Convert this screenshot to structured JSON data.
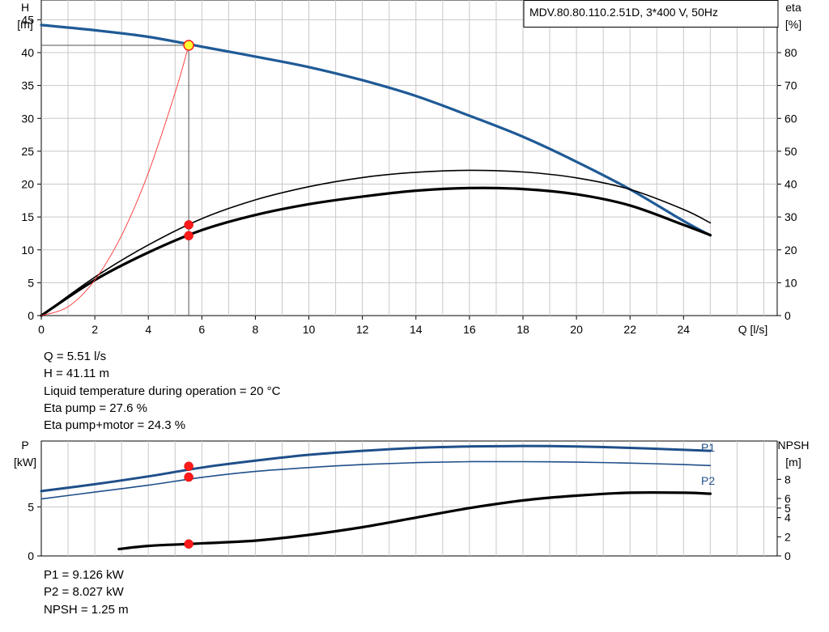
{
  "colors": {
    "grid": "#c8c8c8",
    "axis": "#000000",
    "head_curve": "#1f5a96",
    "p_curve": "#1f4f8a",
    "eff_curve": "#000000",
    "system_curve": "#ff3333",
    "marker": "#ff1a1a",
    "duty_marker_fill": "#ffff33"
  },
  "chart_data": [
    {
      "type": "line",
      "title": "MDV.80.80.110.2.51D, 3*400 V, 50Hz",
      "xlabel": "Q [l/s]",
      "ylabel_main": "H",
      "ylabel_unit": "[m]",
      "y2label_main": "eta",
      "y2label_unit": "[%]",
      "xlim": [
        0,
        27.5
      ],
      "ylim": [
        0,
        48
      ],
      "y2lim": [
        0,
        96
      ],
      "x_ticks": [
        0,
        2,
        4,
        6,
        8,
        10,
        12,
        14,
        16,
        18,
        20,
        22,
        24
      ],
      "y_ticks": [
        0,
        5,
        10,
        15,
        20,
        25,
        30,
        35,
        40,
        45
      ],
      "y2_ticks": [
        0,
        10,
        20,
        30,
        40,
        50,
        60,
        70,
        80
      ],
      "grid": true,
      "series": [
        {
          "name": "H",
          "axis": "left",
          "style": "head",
          "x": [
            0,
            2,
            4,
            6,
            8,
            10,
            12,
            14,
            16,
            18,
            20,
            22,
            24,
            25
          ],
          "y": [
            44.2,
            43.4,
            42.4,
            40.9,
            39.4,
            37.8,
            35.8,
            33.4,
            30.4,
            27.2,
            23.4,
            19.2,
            14.4,
            12.2
          ]
        },
        {
          "name": "Eta pump",
          "axis": "right",
          "style": "eff_thin",
          "x": [
            0,
            2,
            4,
            6,
            8,
            10,
            12,
            14,
            16,
            18,
            20,
            22,
            24,
            25
          ],
          "y": [
            0,
            11.7,
            21.5,
            29.5,
            35.2,
            39.2,
            42.0,
            43.6,
            44.2,
            43.7,
            41.9,
            38.4,
            32.3,
            28.2
          ]
        },
        {
          "name": "Eta pump+motor",
          "axis": "right",
          "style": "eff_thick",
          "x": [
            0,
            2,
            4,
            6,
            8,
            10,
            12,
            14,
            16,
            18,
            20,
            22,
            24,
            25
          ],
          "y": [
            0,
            10.8,
            19.2,
            26.0,
            30.6,
            33.9,
            36.2,
            38.0,
            38.8,
            38.5,
            36.9,
            33.5,
            27.6,
            24.5
          ]
        },
        {
          "name": "System curve",
          "axis": "left",
          "style": "system",
          "x": [
            0,
            1,
            2,
            3,
            4,
            5,
            5.51
          ],
          "y": [
            0,
            1.35,
            5.4,
            12.2,
            21.7,
            33.9,
            41.11
          ]
        }
      ],
      "markers": [
        {
          "x": 5.51,
          "y": 41.11,
          "axis": "left",
          "kind": "duty"
        },
        {
          "x": 5.51,
          "y": 27.6,
          "axis": "right",
          "kind": "point"
        },
        {
          "x": 5.51,
          "y": 24.3,
          "axis": "right",
          "kind": "point"
        }
      ],
      "duty_point": {
        "x": 5.51,
        "y": 41.11
      }
    },
    {
      "type": "line",
      "ylabel_main": "P",
      "ylabel_unit": "[kW]",
      "y2label_main": "NPSH",
      "y2label_unit": "[m]",
      "xlim": [
        0,
        27.5
      ],
      "ylim": [
        0,
        11.7
      ],
      "y2lim": [
        0,
        12.0
      ],
      "y_ticks": [
        0,
        5
      ],
      "y2_ticks": [
        0,
        2,
        4,
        5,
        6,
        8
      ],
      "grid": true,
      "series": [
        {
          "name": "P1",
          "axis": "left",
          "style": "p1",
          "x": [
            0,
            2,
            4,
            6,
            8,
            10,
            12,
            14,
            16,
            18,
            20,
            22,
            24,
            25
          ],
          "y": [
            6.6,
            7.3,
            8.1,
            9.0,
            9.7,
            10.3,
            10.7,
            11.0,
            11.15,
            11.2,
            11.15,
            11.0,
            10.8,
            10.7
          ]
        },
        {
          "name": "P2",
          "axis": "left",
          "style": "p2",
          "x": [
            0,
            2,
            4,
            6,
            8,
            10,
            12,
            14,
            16,
            18,
            20,
            22,
            24,
            25
          ],
          "y": [
            5.8,
            6.5,
            7.2,
            8.0,
            8.6,
            9.0,
            9.3,
            9.5,
            9.6,
            9.6,
            9.55,
            9.45,
            9.3,
            9.2
          ]
        },
        {
          "name": "NPSH",
          "axis": "right",
          "style": "npsh",
          "x": [
            2.9,
            4,
            5.51,
            8,
            10,
            12,
            14,
            16,
            18,
            20,
            22,
            24,
            25
          ],
          "y": [
            0.72,
            1.05,
            1.25,
            1.6,
            2.2,
            3.0,
            4.0,
            5.0,
            5.8,
            6.3,
            6.6,
            6.6,
            6.5
          ]
        }
      ],
      "markers": [
        {
          "x": 5.51,
          "y": 9.126,
          "axis": "left",
          "kind": "point"
        },
        {
          "x": 5.51,
          "y": 8.027,
          "axis": "left",
          "kind": "point"
        },
        {
          "x": 5.51,
          "y": 1.25,
          "axis": "right",
          "kind": "point"
        }
      ]
    }
  ],
  "info_top": [
    "Q = 5.51 l/s",
    "H = 41.11 m",
    "Liquid temperature during operation = 20 °C",
    "Eta pump = 27.6 %",
    "Eta pump+motor = 24.3 %"
  ],
  "info_bottom": [
    "P1 = 9.126 kW",
    "P2 = 8.027 kW",
    "NPSH = 1.25 m"
  ]
}
